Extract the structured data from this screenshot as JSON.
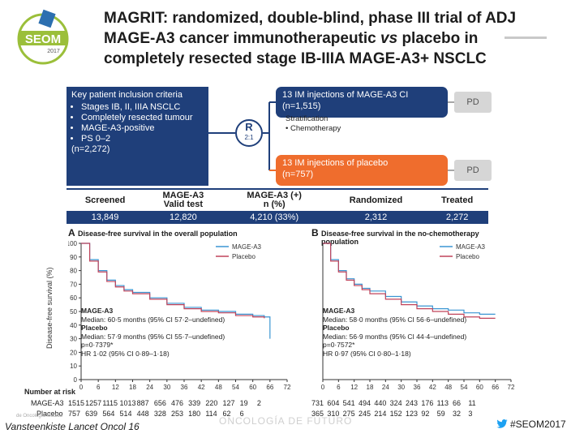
{
  "logo": {
    "text": "SEOM",
    "year": "2017"
  },
  "title": {
    "line1": "MAGRIT: randomized, double-blind, phase III trial of ADJ",
    "line2_pre": "MAGE-A3 cancer immunotherapeutic ",
    "line2_em": "vs",
    "line2_post": " placebo in",
    "line3": "completely resected stage IB-IIIA MAGE-A3+ NSCLC"
  },
  "design": {
    "criteria_title": "Key patient inclusion criteria",
    "criteria": [
      "Stages IB, II, IIIA NSCLC",
      "Completely resected tumour",
      "MAGE-A3-positive",
      "PS 0–2"
    ],
    "criteria_n": "(n=2,272)",
    "r_label": "R",
    "r_ratio": "2:1",
    "arm1_l1": "13 IM injections of MAGE-A3 CI",
    "arm1_l2": "(n=1,515)",
    "arm2_l1": "13 IM injections of placebo",
    "arm2_l2": "(n=757)",
    "pd": "PD",
    "strat_title": "Stratification",
    "strat_item": "Chemotherapy"
  },
  "flow": {
    "headers": [
      "Screened",
      "MAGE-A3\nValid test",
      "MAGE-A3 (+)\nn (%)",
      "Randomized",
      "Treated"
    ],
    "values": [
      "13,849",
      "12,820",
      "4,210 (33%)",
      "2,312",
      "2,272"
    ]
  },
  "panelA": {
    "label": "A",
    "title": "Disease-free survival in the overall population",
    "legend": [
      "MAGE-A3",
      "Placebo"
    ],
    "yticks": [
      "100",
      "90",
      "80",
      "70",
      "60",
      "50",
      "40",
      "30",
      "20",
      "10",
      "0"
    ],
    "xticks": [
      "0",
      "6",
      "12",
      "18",
      "24",
      "30",
      "36",
      "42",
      "48",
      "54",
      "60",
      "66",
      "72"
    ],
    "med": [
      "MAGE-A3",
      "Median: 60·5 months (95% CI 57·2–undefined)",
      "Placebo",
      "Median: 57·9 months (95% CI 55·7–undefined)",
      "p=0·7379*",
      "HR 1·02 (95% CI 0·89–1·18)"
    ]
  },
  "panelB": {
    "label": "B",
    "title": "Disease-free survival in the no-chemotherapy population",
    "legend": [
      "MAGE-A3",
      "Placebo"
    ],
    "xticks": [
      "0",
      "6",
      "12",
      "18",
      "24",
      "30",
      "36",
      "42",
      "48",
      "54",
      "60",
      "66",
      "72"
    ],
    "med": [
      "MAGE-A3",
      "Median: 58·0 months (95% CI 56·6–undefined)",
      "Placebo",
      "Median: 56·9 months (95% CI 44·4–undefined)",
      "p=0·7572*",
      "HR 0·97 (95% CI 0·80–1·18)"
    ]
  },
  "ylabel": "Disease-free survival (%)",
  "risk": {
    "title": "Number at risk",
    "rows": [
      {
        "name": "MAGE-A3",
        "a": [
          "1515",
          "1257",
          "1115",
          "1013",
          "887",
          "656",
          "476",
          "339",
          "220",
          "127",
          "19",
          "2"
        ],
        "b": [
          "731",
          "604",
          "541",
          "494",
          "440",
          "324",
          "243",
          "176",
          "113",
          "66",
          "11"
        ]
      },
      {
        "name": "Placebo",
        "a": [
          "757",
          "639",
          "564",
          "514",
          "448",
          "328",
          "253",
          "180",
          "114",
          "62",
          "6"
        ],
        "b": [
          "365",
          "310",
          "275",
          "245",
          "214",
          "152",
          "123",
          "92",
          "59",
          "32",
          "3"
        ]
      }
    ]
  },
  "chart_data": [
    {
      "type": "line",
      "title": "Disease-free survival in the overall population",
      "xlabel": "",
      "ylabel": "Disease-free survival (%)",
      "xlim": [
        0,
        72
      ],
      "ylim": [
        0,
        100
      ],
      "series": [
        {
          "name": "MAGE-A3",
          "x": [
            0,
            3,
            6,
            9,
            12,
            15,
            18,
            24,
            30,
            36,
            42,
            48,
            54,
            60,
            64,
            66
          ],
          "y": [
            100,
            88,
            80,
            73,
            69,
            66,
            64,
            60,
            56,
            53,
            51,
            50,
            48,
            47,
            46,
            30
          ]
        },
        {
          "name": "Placebo",
          "x": [
            0,
            3,
            6,
            9,
            12,
            15,
            18,
            24,
            30,
            36,
            42,
            48,
            54,
            60,
            64
          ],
          "y": [
            100,
            87,
            79,
            72,
            68,
            65,
            63,
            59,
            55,
            52,
            50,
            49,
            47,
            46,
            45
          ]
        }
      ],
      "legend": "top-right"
    },
    {
      "type": "line",
      "title": "Disease-free survival in the no-chemotherapy population",
      "xlabel": "",
      "ylabel": "",
      "xlim": [
        0,
        72
      ],
      "ylim": [
        0,
        100
      ],
      "series": [
        {
          "name": "MAGE-A3",
          "x": [
            0,
            3,
            6,
            9,
            12,
            15,
            18,
            24,
            30,
            36,
            42,
            48,
            54,
            60,
            66
          ],
          "y": [
            100,
            88,
            80,
            74,
            70,
            67,
            65,
            61,
            57,
            54,
            52,
            51,
            49,
            48,
            48
          ]
        },
        {
          "name": "Placebo",
          "x": [
            0,
            3,
            6,
            9,
            12,
            15,
            18,
            24,
            30,
            36,
            42,
            48,
            54,
            60,
            66
          ],
          "y": [
            100,
            87,
            79,
            73,
            69,
            66,
            63,
            59,
            55,
            52,
            50,
            48,
            46,
            45,
            45
          ]
        }
      ],
      "legend": "top-right"
    }
  ],
  "colors": {
    "mage": "#3a95d2",
    "placebo": "#c0435a",
    "navy": "#1f3f7a",
    "orange": "#ef6d2d"
  },
  "footer": {
    "citation": "Vansteenkiste Lancet Oncol 16",
    "hashtag": "#SEOM2017",
    "watermark": "ONCOLOGÍA DE FUTURO",
    "watermark_small": "de Oncología Médica"
  }
}
